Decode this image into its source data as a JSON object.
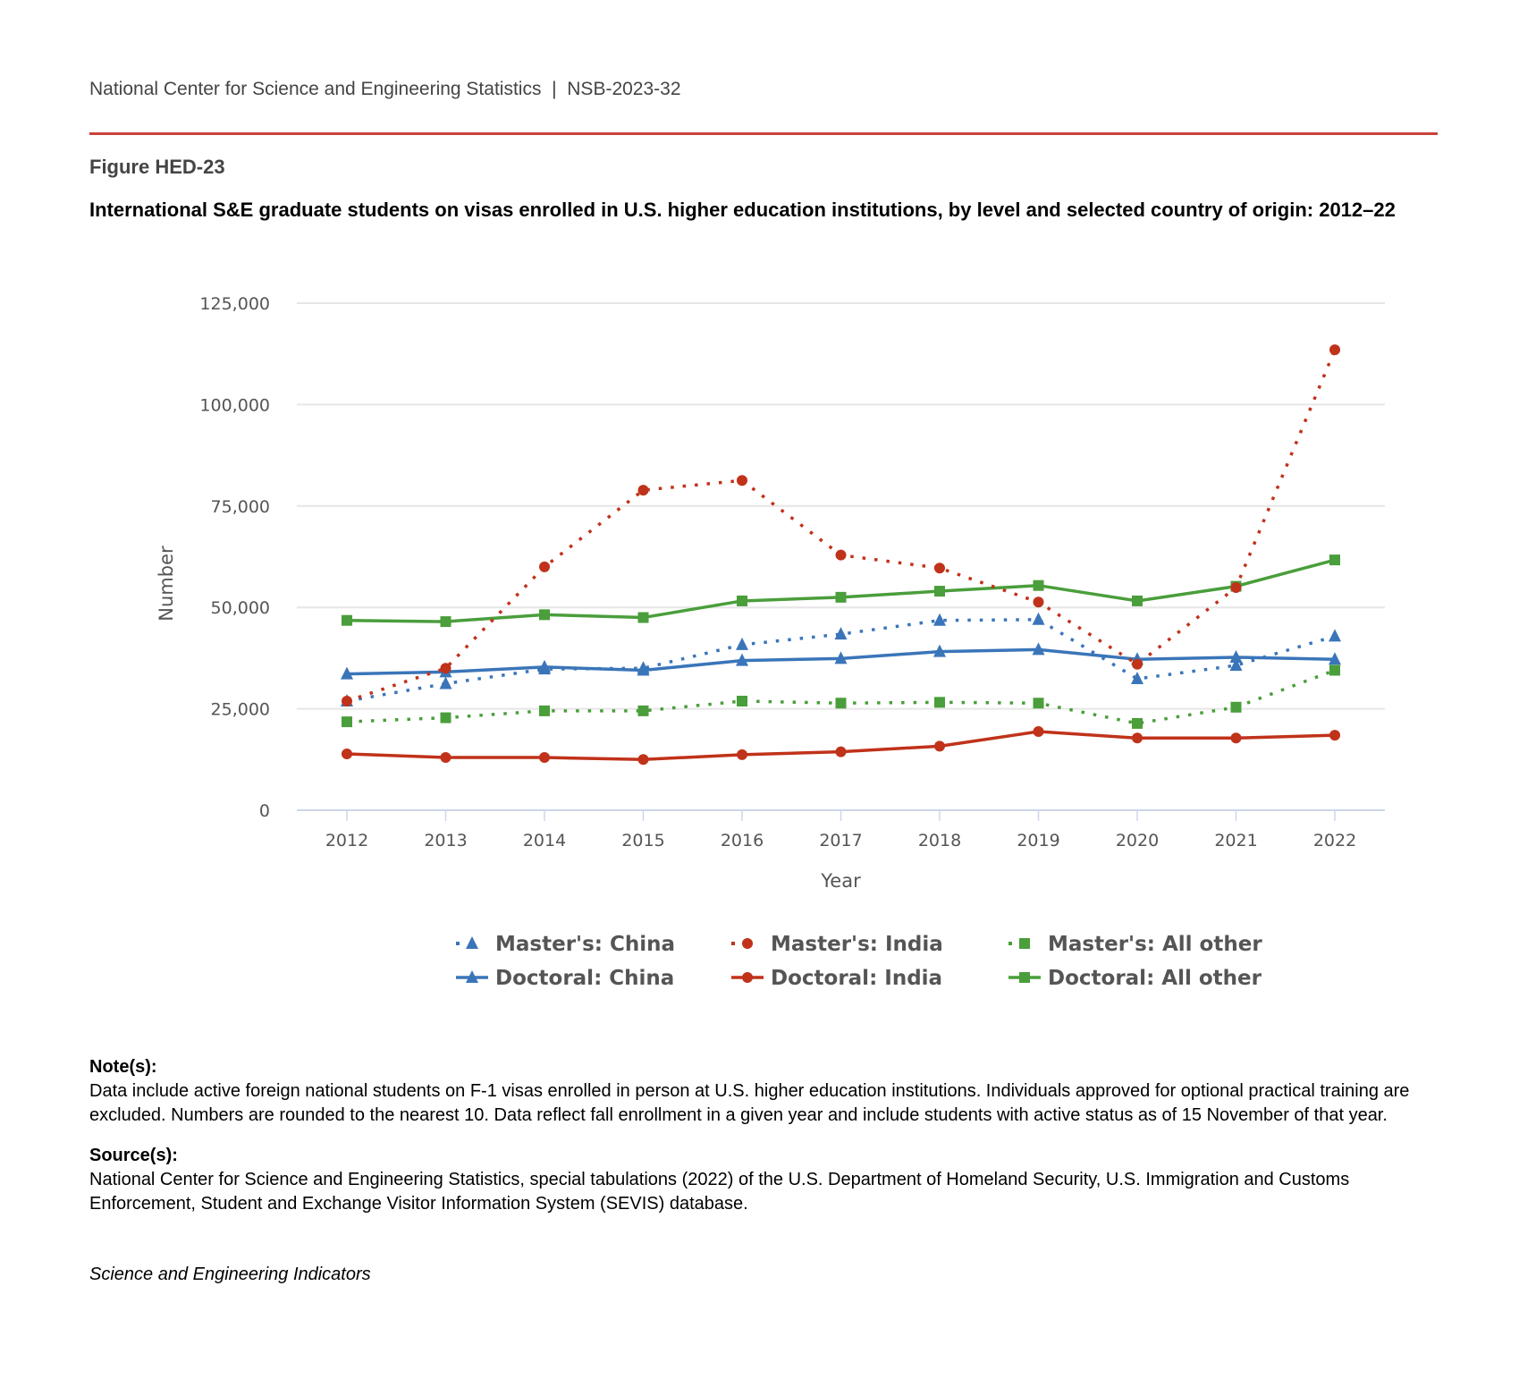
{
  "header": {
    "org": "National Center for Science and Engineering Statistics",
    "separator": "|",
    "report": "NSB-2023-32"
  },
  "figure_label": "Figure HED-23",
  "title": "International S&E graduate students on visas enrolled in U.S. higher education institutions, by level and selected country of origin: 2012–22",
  "chart_data": {
    "type": "line",
    "title": "International S&E graduate students on visas enrolled in U.S. higher education institutions, by level and selected country of origin: 2012–22",
    "xlabel": "Year",
    "ylabel": "Number",
    "x": [
      "2012",
      "2013",
      "2014",
      "2015",
      "2016",
      "2017",
      "2018",
      "2019",
      "2020",
      "2021",
      "2022"
    ],
    "ylim": [
      0,
      125000
    ],
    "yticks": [
      0,
      25000,
      50000,
      75000,
      100000,
      125000
    ],
    "ytick_labels": [
      "0",
      "25,000",
      "50,000",
      "75,000",
      "100,000",
      "125,000"
    ],
    "grid": true,
    "legend_position": "bottom",
    "series": [
      {
        "name": "Master's: China",
        "color": "#3a75b9",
        "dash": "dotted",
        "marker": "triangle",
        "values": [
          26900,
          31200,
          34800,
          35000,
          40800,
          43400,
          46800,
          47000,
          32400,
          35700,
          42900
        ]
      },
      {
        "name": "Master's: India",
        "color": "#c0321a",
        "dash": "dotted",
        "marker": "circle",
        "values": [
          26900,
          35000,
          60000,
          78900,
          81300,
          62900,
          59700,
          51300,
          36000,
          54900,
          113500
        ]
      },
      {
        "name": "Master's: All other",
        "color": "#4a9e3b",
        "dash": "dotted",
        "marker": "square",
        "values": [
          21800,
          22800,
          24500,
          24500,
          26900,
          26400,
          26600,
          26400,
          21400,
          25400,
          34500
        ]
      },
      {
        "name": "Doctoral: China",
        "color": "#3a75b9",
        "dash": "solid",
        "marker": "triangle",
        "values": [
          33600,
          34100,
          35300,
          34500,
          36900,
          37400,
          39100,
          39600,
          37200,
          37700,
          37200
        ]
      },
      {
        "name": "Doctoral: India",
        "color": "#c0321a",
        "dash": "solid",
        "marker": "circle",
        "values": [
          13900,
          13000,
          13000,
          12500,
          13700,
          14400,
          15800,
          19400,
          17800,
          17800,
          18500
        ]
      },
      {
        "name": "Doctoral: All other",
        "color": "#4a9e3b",
        "dash": "solid",
        "marker": "square",
        "values": [
          46800,
          46500,
          48200,
          47500,
          51600,
          52500,
          54000,
          55400,
          51600,
          55200,
          61700
        ]
      }
    ]
  },
  "notes": {
    "heading": "Note(s):",
    "text": "Data include active foreign national students on F-1 visas enrolled in person at U.S. higher education institutions. Individuals approved for optional practical training are excluded. Numbers are rounded to the nearest 10. Data reflect fall enrollment in a given year and include students with active status as of 15 November of that year."
  },
  "sources": {
    "heading": "Source(s):",
    "text": "National Center for Science and Engineering Statistics, special tabulations (2022) of the U.S. Department of Homeland Security, U.S. Immigration and Customs Enforcement, Student and Exchange Visitor Information System (SEVIS) database."
  },
  "publication": "Science and Engineering Indicators"
}
